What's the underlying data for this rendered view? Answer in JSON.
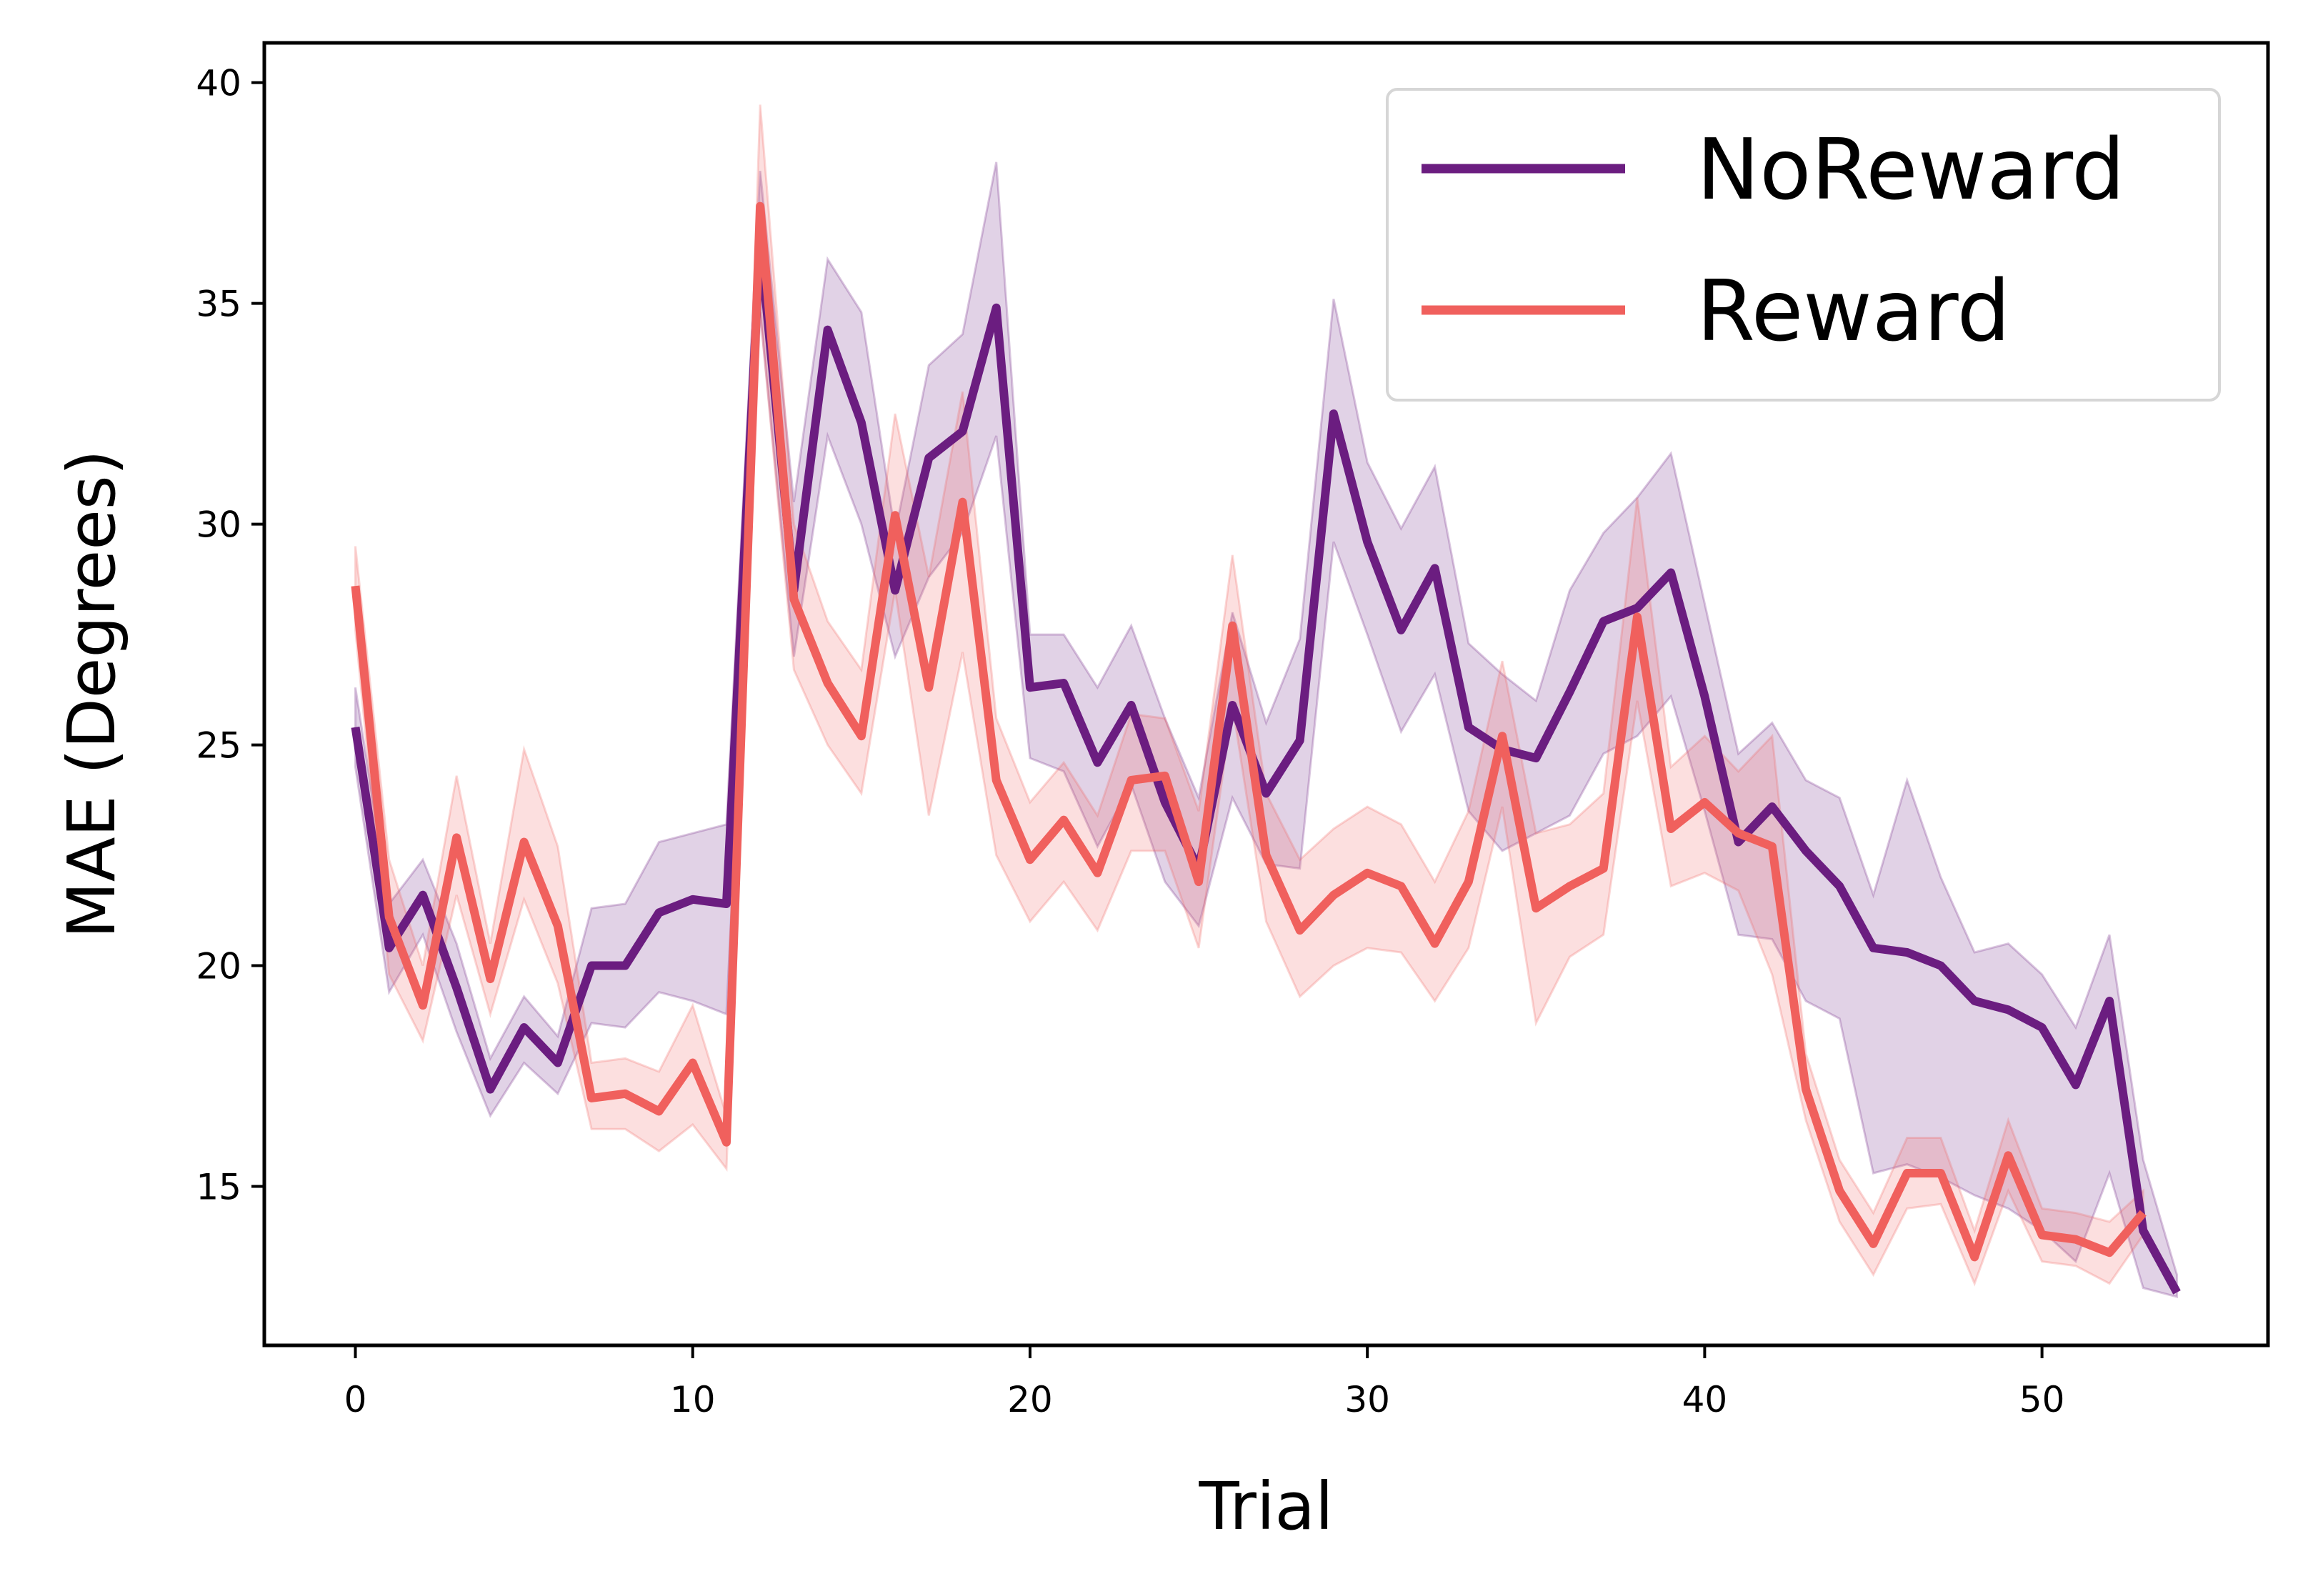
{
  "chart_data": {
    "type": "line",
    "xlabel": "Trial",
    "ylabel": "MAE (Degrees)",
    "xlim": [
      -2.7,
      56.7
    ],
    "ylim": [
      11.4,
      40.9
    ],
    "xticks": [
      0,
      10,
      20,
      30,
      40,
      50
    ],
    "yticks": [
      15,
      20,
      25,
      30,
      35,
      40
    ],
    "grid": false,
    "legend_position": "top-right",
    "series": [
      {
        "name": "NoReward",
        "color": "#6b1d80",
        "x": [
          0,
          1,
          2,
          3,
          4,
          5,
          6,
          7,
          8,
          9,
          10,
          11,
          12,
          13,
          14,
          15,
          16,
          17,
          18,
          19,
          20,
          21,
          22,
          23,
          24,
          25,
          26,
          27,
          28,
          29,
          30,
          31,
          32,
          33,
          34,
          35,
          36,
          37,
          38,
          39,
          40,
          41,
          42,
          43,
          44,
          45,
          46,
          47,
          48,
          49,
          50,
          51,
          52,
          53,
          54
        ],
        "values": [
          25.4,
          20.4,
          21.6,
          19.5,
          17.2,
          18.6,
          17.8,
          20.0,
          20.0,
          21.2,
          21.5,
          21.4,
          36.4,
          28.5,
          34.4,
          32.3,
          28.5,
          31.5,
          32.1,
          34.9,
          26.3,
          26.4,
          24.6,
          25.9,
          23.7,
          22.2,
          25.9,
          23.9,
          25.1,
          32.5,
          29.6,
          27.6,
          29.0,
          25.4,
          24.9,
          24.7,
          26.2,
          27.8,
          28.1,
          28.9,
          26.1,
          22.8,
          23.6,
          22.6,
          21.8,
          20.4,
          20.3,
          20.0,
          19.2,
          19.0,
          18.6,
          17.3,
          19.2,
          14.0,
          12.6
        ],
        "lower": [
          24.5,
          19.4,
          20.7,
          18.5,
          16.6,
          17.8,
          17.1,
          18.7,
          18.6,
          19.4,
          19.2,
          18.9,
          34.8,
          27.0,
          32.0,
          30.0,
          27.0,
          28.8,
          29.8,
          32.0,
          24.7,
          24.4,
          22.7,
          24.1,
          21.9,
          20.9,
          23.8,
          22.3,
          22.2,
          29.6,
          27.5,
          25.3,
          26.6,
          23.5,
          22.6,
          23.0,
          23.4,
          24.8,
          25.2,
          26.1,
          23.5,
          20.7,
          20.6,
          19.2,
          18.8,
          15.3,
          15.5,
          15.2,
          14.8,
          14.5,
          14.0,
          13.3,
          15.3,
          12.7,
          12.5
        ],
        "upper": [
          26.3,
          21.4,
          22.4,
          20.5,
          17.9,
          19.3,
          18.4,
          21.3,
          21.4,
          22.8,
          23.0,
          23.2,
          38.0,
          30.5,
          36.0,
          34.8,
          29.8,
          33.6,
          34.3,
          38.2,
          27.5,
          27.5,
          26.3,
          27.7,
          25.6,
          23.8,
          28.0,
          25.5,
          27.4,
          35.1,
          31.4,
          29.9,
          31.3,
          27.3,
          26.6,
          26.0,
          28.5,
          29.8,
          30.6,
          31.6,
          28.2,
          24.8,
          25.5,
          24.2,
          23.8,
          21.6,
          24.2,
          22.0,
          20.3,
          20.5,
          19.8,
          18.6,
          20.7,
          15.6,
          13.0
        ]
      },
      {
        "name": "Reward",
        "color": "#f0605d",
        "x": [
          0,
          1,
          2,
          3,
          4,
          5,
          6,
          7,
          8,
          9,
          10,
          11,
          12,
          13,
          14,
          15,
          16,
          17,
          18,
          19,
          20,
          21,
          22,
          23,
          24,
          25,
          26,
          27,
          28,
          29,
          30,
          31,
          32,
          33,
          34,
          35,
          36,
          37,
          38,
          39,
          40,
          41,
          42,
          43,
          44,
          45,
          46,
          47,
          48,
          49,
          50,
          51,
          52,
          53
        ],
        "values": [
          28.6,
          21.1,
          19.1,
          22.9,
          19.7,
          22.8,
          20.9,
          17.0,
          17.1,
          16.7,
          17.8,
          16.0,
          37.2,
          28.3,
          26.4,
          25.2,
          30.2,
          26.3,
          30.5,
          24.2,
          22.4,
          23.3,
          22.1,
          24.2,
          24.3,
          21.9,
          27.7,
          22.5,
          20.8,
          21.6,
          22.1,
          21.8,
          20.5,
          21.9,
          25.2,
          21.3,
          21.8,
          22.2,
          27.9,
          23.1,
          23.7,
          23.0,
          22.7,
          17.2,
          14.9,
          13.7,
          15.3,
          15.3,
          13.4,
          15.7,
          13.9,
          13.8,
          13.5,
          14.4
        ],
        "lower": [
          27.6,
          19.8,
          18.3,
          21.6,
          18.9,
          21.5,
          19.6,
          16.3,
          16.3,
          15.8,
          16.4,
          15.4,
          34.8,
          26.7,
          25.0,
          23.9,
          28.5,
          23.4,
          27.1,
          22.5,
          21.0,
          21.9,
          20.8,
          22.6,
          22.6,
          20.4,
          25.9,
          21.0,
          19.3,
          20.0,
          20.4,
          20.3,
          19.2,
          20.4,
          23.6,
          18.7,
          20.2,
          20.7,
          26.0,
          21.8,
          22.1,
          21.7,
          19.8,
          16.5,
          14.2,
          13.0,
          14.5,
          14.6,
          12.8,
          14.9,
          13.3,
          13.2,
          12.8,
          13.9
        ],
        "upper": [
          29.5,
          22.4,
          20.0,
          24.3,
          20.5,
          24.9,
          22.7,
          17.8,
          17.9,
          17.6,
          19.1,
          16.6,
          39.5,
          30.0,
          27.8,
          26.7,
          32.5,
          28.8,
          33.0,
          25.6,
          23.7,
          24.6,
          23.4,
          25.7,
          25.6,
          23.5,
          29.3,
          23.9,
          22.4,
          23.1,
          23.6,
          23.2,
          21.9,
          23.5,
          26.9,
          23.0,
          23.2,
          23.9,
          30.6,
          24.5,
          25.2,
          24.4,
          25.2,
          18.0,
          15.6,
          14.4,
          16.1,
          16.1,
          14.0,
          16.5,
          14.5,
          14.4,
          14.2,
          14.9
        ]
      }
    ]
  }
}
